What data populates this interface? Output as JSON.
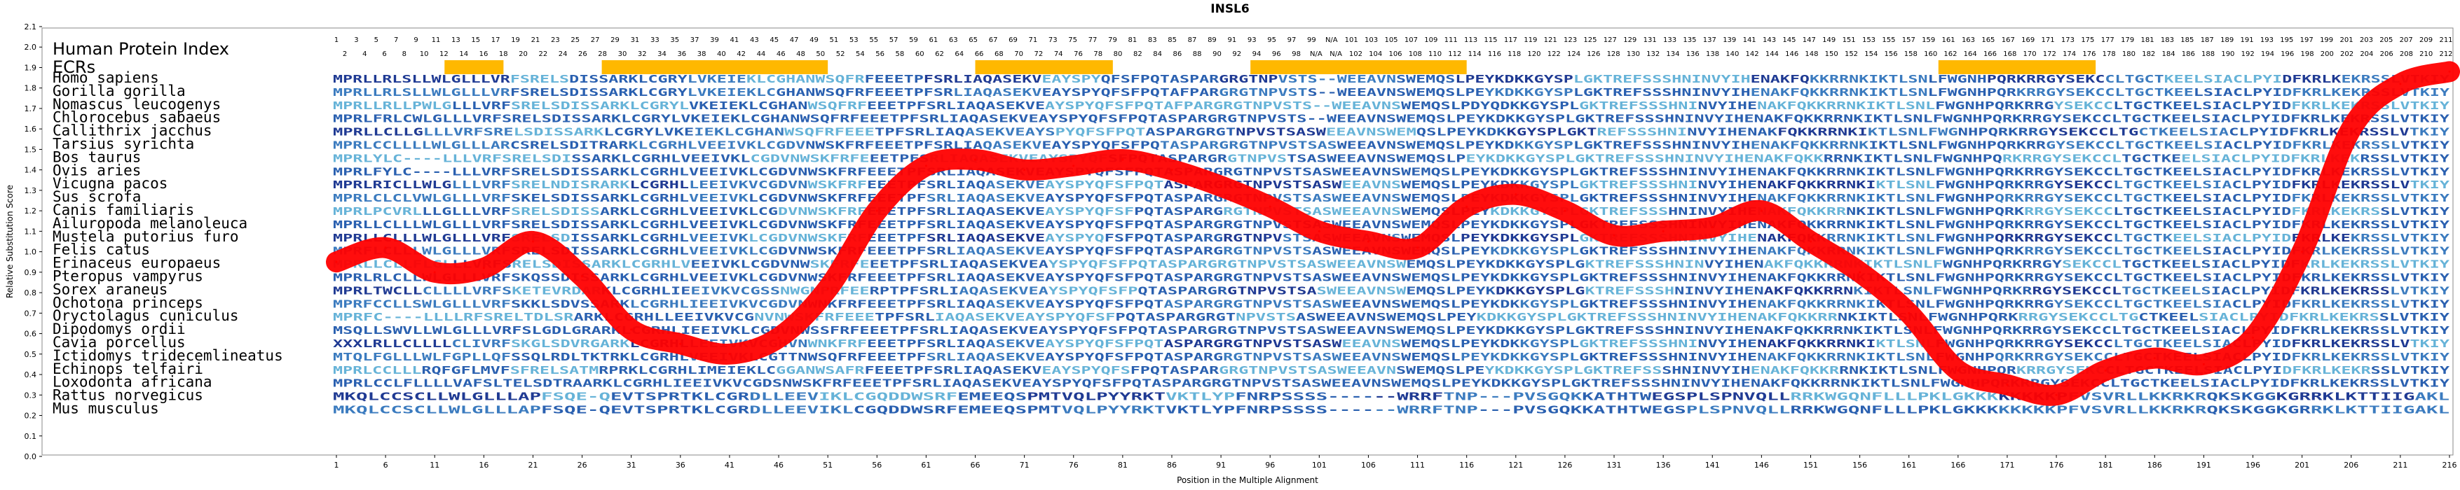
{
  "chart_data": {
    "type": "line",
    "title": "INSL6",
    "xlabel": "Position in the Multiple Alignment",
    "ylabel": "Relative Substitution Score",
    "xlim": [
      1,
      216
    ],
    "ylim": [
      0.0,
      2.1
    ],
    "yticks": [
      "0.0",
      "0.1",
      "0.2",
      "0.3",
      "0.4",
      "0.5",
      "0.6",
      "0.7",
      "0.8",
      "0.9",
      "1.0",
      "1.1",
      "1.2",
      "1.3",
      "1.4",
      "1.5",
      "1.6",
      "1.7",
      "1.8",
      "1.9",
      "2.0",
      "2.1"
    ],
    "xticks": [
      1,
      6,
      11,
      16,
      21,
      26,
      31,
      36,
      41,
      46,
      51,
      56,
      61,
      66,
      71,
      76,
      81,
      86,
      91,
      96,
      101,
      106,
      111,
      116,
      121,
      126,
      131,
      136,
      141,
      146,
      151,
      156,
      161,
      166,
      171,
      176,
      181,
      186,
      191,
      196,
      201,
      206,
      211,
      216
    ],
    "hpi_label": "Human Protein Index",
    "hpi_row1": [
      "1",
      "3",
      "5",
      "7",
      "9",
      "11",
      "13",
      "15",
      "17",
      "19",
      "21",
      "23",
      "25",
      "27",
      "29",
      "31",
      "33",
      "35",
      "37",
      "39",
      "41",
      "43",
      "45",
      "47",
      "49",
      "51",
      "53",
      "55",
      "57",
      "59",
      "61",
      "63",
      "65",
      "67",
      "69",
      "71",
      "73",
      "75",
      "77",
      "79",
      "81",
      "83",
      "85",
      "87",
      "89",
      "91",
      "93",
      "95",
      "97",
      "99",
      "N/A",
      "101",
      "103",
      "105",
      "107",
      "109",
      "111",
      "113",
      "115",
      "117",
      "119",
      "121",
      "123",
      "125",
      "127",
      "129",
      "131",
      "133",
      "135",
      "137",
      "139",
      "141",
      "143",
      "145",
      "147",
      "149",
      "151",
      "153",
      "155",
      "157",
      "159",
      "161",
      "163",
      "165",
      "167",
      "169",
      "171",
      "173",
      "175",
      "177",
      "179",
      "181",
      "183",
      "185",
      "187",
      "189",
      "191",
      "193",
      "195",
      "197",
      "199",
      "201",
      "203",
      "205",
      "207",
      "209",
      "211"
    ],
    "hpi_row2": [
      "2",
      "4",
      "6",
      "8",
      "10",
      "12",
      "14",
      "16",
      "18",
      "20",
      "22",
      "24",
      "26",
      "28",
      "30",
      "32",
      "34",
      "36",
      "38",
      "40",
      "42",
      "44",
      "46",
      "48",
      "50",
      "52",
      "54",
      "56",
      "58",
      "60",
      "62",
      "64",
      "66",
      "68",
      "70",
      "72",
      "74",
      "76",
      "78",
      "80",
      "82",
      "84",
      "86",
      "88",
      "90",
      "92",
      "94",
      "96",
      "98",
      "N/A",
      "N/A",
      "102",
      "104",
      "106",
      "108",
      "110",
      "112",
      "114",
      "116",
      "118",
      "120",
      "122",
      "124",
      "126",
      "128",
      "130",
      "132",
      "134",
      "136",
      "138",
      "140",
      "142",
      "144",
      "146",
      "148",
      "150",
      "152",
      "154",
      "156",
      "158",
      "160",
      "162",
      "164",
      "166",
      "168",
      "170",
      "172",
      "174",
      "176",
      "178",
      "180",
      "182",
      "184",
      "186",
      "188",
      "190",
      "192",
      "194",
      "196",
      "198",
      "200",
      "202",
      "204",
      "206",
      "208",
      "210",
      "212"
    ],
    "ecr_label": "ECRs",
    "ecrs": [
      [
        12,
        18
      ],
      [
        28,
        51
      ],
      [
        66,
        80
      ],
      [
        94,
        116
      ],
      [
        164,
        180
      ]
    ],
    "species": [
      {
        "name": "Homo sapiens",
        "seq": "MPRLLRLSLLWLGLLLVRFSRELSDISSARKLCGRYLVKEIEKLCGHANWSQFRFEEETPFSRLIAQASEKVEAYSPYQFSFPQTASPARGRGTNPVSTS--WEEAVNSWEMQSLPEYKDKKGYSPLGKTREFSSSHNINVYIHENAKFQKKRRNKIKTLSNLFWGNHPQRKRRGYSEKCCLTGCTKEELSIACLPYIDFKRLKEKRSSLVTKIY"
      },
      {
        "name": "Gorilla gorilla",
        "seq": "MPRLLRLSLLWLGLLLVRFSRELSDISSARKLCGRYLVKEIEKLCGHANWSQFRFEEETPFSRLIAQASEKVEAYSPYQFSFPQTAFPARGRGTNPVSTS--WEEAVNSWEMQSLPEYKDKKGYSPLGKTREFSSSHNINVYIHENAKFQKKRRNKIKTLSNLFWGNHPQRKRRGYSEKCCLTGCTKEELSIACLPYIDFKRLKEKRSSLVTKIY"
      },
      {
        "name": "Nomascus leucogenys",
        "seq": "MPRLLRLLPWLGLLLVRFSRELSDISSARKLCGRYLVKEIEKLCGHANWSQFRFEEETPFSRLIAQASEKVEAYSPYQFSFPQTAFPARGRGTNPVSTS--WEEAVNSWEMQSLPDYQDKKGYSPLGKTREFSSSHNINVYIHENAKFQKKRRNKIKTLSNLFWGNHPQRKRRGYSEKCCLTGCTKEELSIACLPYIDFKRLKEKRSSLVTKIY"
      },
      {
        "name": "Chlorocebus sabaeus",
        "seq": "MPRLFRLCWLGLLLVRFSRELSDISSARKLCGRYLVKEIEKLCGHANWSQFRFEEETPFSRLIAQASEKVEAYSPYQFSFPQTASPARGRGTNPVSTS--WEEAVNSWEMQSLPEYKDKKGYSPLGKTREFSSSHNINVYIHENAKFQKKRRNKIKTLSNLFWGNHPQRKRRGYSEKCCLTGCTKEELSIACLPYIDFKRLKEKRSSLVTKIY"
      },
      {
        "name": "Callithrix jacchus",
        "seq": "MPRLLCLLGLLLVRFSRELSDISSARKLCGRYLVKEIEKLCGHANWSQFRFEEETPFSRLIAQASEKVEAYSPYQFSFPQTASPARGRGTNPVSTSASWEEAVNSWEMQSLPEYKDKKGYSPLGKTREFSSSHNINVYIHENAKFQKKRRNKIKTLSNLFWGNHPQRKRRGYSEKCCLTGCTKEELSIACLPYIDFKRLKEKRSSLVTKIY"
      },
      {
        "name": "Tarsius syrichta",
        "seq": "MPRLCCLLLLWLGLLLARCSRELSDITRARKLCGRHLVEEIVKLCGDVNWSKFRFEEETPFSRLIAQASEKVEAYSPYQFSFPQTASPARGRGTNPVSTSASWEEAVNSWEMQSLPEYKDKKGYSPLGKTREFSSSHNINVYIHENAKFQKKRRNKIKTLSNLFWGNHPQRKRRGYSEKCCLTGCTKEELSIACLPYIDFKRLKEKRSSLVTKIY"
      },
      {
        "name": "Bos taurus",
        "seq": "MPRLYLC----LLLVRFSRELSDISSARKLCGRHLVEEIVKLCGDVNWSKFRFEEETPFSRLIAQASEKVEAYSPYQFSFPQTASPARGRGTNPVSTSASWEEAVNSWEMQSLPEYKDKKGYSPLGKTREFSSSHNINVYIHENAKFQKKRRNKIKTLSNLFWGNHPQRKRRGYSEKCCLTGCTKEELSIACLPYIDFKRLKEKRSSLVTKIY"
      },
      {
        "name": "Ovis aries",
        "seq": "MPRLFYLC----LLLVRFSRELSDISSARKLCGRHLVEEIVKLCGDVNWSKFRFEEETPFSRLIAQASEKVEAYSPYQFSFPQTASPARGRGTNPVSTSASWEEAVNSWEMQSLPEYKDKKGYSPLGKTREFSSSHNINVYIHENAKFQKKRRNKIKTLSNLFWGNHPQRKRRGYSEKCCLTGCTKEELSIACLPYIDFKRLKEKRSSLVTKIY"
      },
      {
        "name": "Vicugna pacos",
        "seq": "MPRLRICLLWLGLLLVRFSRELNDISRARKLCGRHLLEEIVKVCGDVNWSKFRFEEETPFSRLIAQASEKVEAYSPYQFSFPQTASPARGRGTNPVSTSASWEEAVNSWEMQSLPEYKDKKGYSPLGKTREFSSSHNINVYIHENAKFQKKRRNKIKTLSNLFWGNHPQRKRRGYSEKCCLTGCTKEELSIACLPYIDFKRLKEKRSSLVTKIY"
      },
      {
        "name": "Sus scrofa",
        "seq": "MPRLCLCLVWLGLLLVRFSKELSDISSARKLCGRHLVEEIVKLCGDVNWSKFRFEEETPFSRLIAQASEKVEAYSPYQFSFPQTASPARGRGTNPVSTSASWEEAVNSWEMQSLPEYKDKKGYSPLGKTREFSSSHNINVYIHENAKFQKKRRNKIKTLSNLFWGNHPQRKRRGYSEKCCLTGCTKEELSIACLPYIDFKRLKEKRSSLVTKIY"
      },
      {
        "name": "Canis familiaris",
        "seq": "MPRLPCVRLLLGLLLVRFSRELSDISSARKLCGRHLVEEIVKLCGDVNWSKFRFEEETPFSRLIAQASEKVEAYSPYQFSFPQTASPARGRGTNPVSTSASWEEAVNSWEMQSLPEYKDKKGYSPLGKTREFSSSHNINVYIHENAKFQKKRRNKIKTLSNLFWGNHPQRKRRGYSEKCCLTGCTKEELSIACLPYIDFKRLKEKRSSLVTKIY"
      },
      {
        "name": "Ailuropoda melanoleuca",
        "seq": "MPRLLCLLLWLGLLLVRFSRELSDISSARKLCGRHLVEEIVKLCGDVNWSKFRFEEETPFSRLIAQASEKVEAYSPYQFSFPQTASPARGRGTNPVSTSASWEEAVNSWEMQSLPEYKDKKGYSPLGKTREFSSSHNINVYIHENAKFQKKRRNKIKTLSNLFWGNHPQRKRRGYSEKCCLTGCTKEELSIACLPYIDFKRLKEKRSSLVTKIY"
      },
      {
        "name": "Mustela putorius furo",
        "seq": "MPRLLCLLLWLGLLLVRFSRELSDISSARKLCGRHLVEEIVKLCGDVNWSKFRFEEETPFSRLIAQASEKVEAYSPYQFSFPQTASPARGRGTNPVSTSASWEEAVNSWEMQSLPEYKDKKGYSPLGKTREFSSSHNINVYIHENAKFQKKRRNKIKTLSNLFWGNHPQRKRRGYSEKCCLTGCTKEELSIACLPYIDFKRLKEKRSSLVTKIY"
      },
      {
        "name": "Felis catus",
        "seq": "MPRFLCLLLWLGLLLVRFSRELSDISSARKLCGRHLVEEIVKLCGDVNWSKFRFEEETPFSRLIAQASEKVEAYSPYQFSFPQTASPARGRGTNPVSTSASWEEAVNSWEMQSLPEYKDKKGYSPLGKTREFSSSHNINVYIHENAKFQKKRRNKIKTLSNLFWGNHPQRKRRGYSEKCCLTGCTKEELSIACLPYIDFKRLKEKRSSLVTKIY"
      },
      {
        "name": "Erinaceus europaeus",
        "seq": "MPRLLCLLFLGLLLVRFSRELSDISSARKLCGRHLVEEIVKLCGDVNWSKFRFEEETPFSRLIAQASEKVEAYSPYQFSFPQTASPARGRGTNPVSTSASWEEAVNSWEMQSLPEYKDKKGYSPLGKTREFSSSHNINVYIHENAKFQKKRRNKIKTLSNLFWGNHPQRKRRGYSEKCCLTGCTKEELSIACLPYIDFKRLKEKRSSLVTKIY"
      },
      {
        "name": "Pteropus vampyrus",
        "seq": "MPRLRLCLLWLGLLLVRFSKQSSDISSARKLCGRHLVEEIVKLCGDVNWSKFRFEEETPFSRLIAQASEKVEAYSPYQFSFPQTASPARGRGTNPVSTSASWEEAVNSWEMQSLPEYKDKKGYSPLGKTREFSSSHNINVYIHENAKFQKKRRNKIKTLSNLFWGNHPQRKRRGYSEKCCLTGCTKEELSIACLPYIDFKRLKEKRSSLVTKIY"
      },
      {
        "name": "Sorex araneus",
        "seq": "MPRLTWCLLCLLLLVRFSKETEVRDARKLCGRHLIEEIVKVCGSSNWGNFRFEERPTPFSRLIAQASEKVEAYSPYQFSFPQTASPARGRGTNPVSTSASWEEAVNSWEMQSLPEYKDKKGYSPLGKTREFSSSHNINVYIHENAKFQKKRRNKIKTLSNLFWGNHPQRKRRGYSEKCCLTGCTKEELSIACLPYIDFKRLKEKRSSLVTKIY"
      },
      {
        "name": "Ochotona princeps",
        "seq": "MPRFCCLLSWLGLLLVRFSKKLSDVSSARKLCGRHLIEEIVKVCGDVNWNKFRFEEETPFSRLIAQASEKVEAYSPYQFSFPQTASPARGRGTNPVSTSASWEEAVNSWEMQSLPEYKDKKGYSPLGKTREFSSSHNINVYIHENAKFQKKRRNKIKTLSNLFWGNHPQRKRRGYSEKCCLTGCTKEELSIACLPYIDFKRLKEKRSSLVTKIY"
      },
      {
        "name": "Oryctolagus cuniculus",
        "seq": "MPRFC----LLLLRFSRELTDLSRARKLCGRHLLEEIVKVCGNVNWSKFRFEEETPFSRLIAQASEKVEAYSPYQFSFPQTASPARGRGTNPVSTSASWEEAVNSWEMQSLPEYKDKKGYSPLGKTREFSSSHNINVYIHENAKFQKKRRNKIKTLSNLFWGNHPQRKRRGYSEKCCLTGCTKEELSIACLPYIDFKRLKEKRSSLVTKIY"
      },
      {
        "name": "Dipodomys ordii",
        "seq": "MSQLLSWVLLWLGLLLVRFSLGDLGRARKLCGRHLIEEIVKLCGDVNWSSFRFEEETPFSRLIAQASEKVEAYSPYQFSFPQTASPARGRGTNPVSTSASWEEAVNSWEMQSLPEYKDKKGYSPLGKTREFSSSHNINVYIHENAKFQKKRRNKIKTLSNLFWGNHPQRKRRGYSEKCCLTGCTKEELSIACLPYIDFKRLKEKRSSLVTKIY"
      },
      {
        "name": "Cavia porcellus",
        "seq": "XXXLRLLCLLLLCLIVRFSKGLSDVRGARKLCGRHLLEEIVKVCGHVNWNKFRFEEETPFSRLIAQASEKVEAYSPYQFSFPQTASPARGRGTNPVSTSASWEEAVNSWEMQSLPEYKDKKGYSPLGKTREFSSSHNINVYIHENAKFQKKRRNKIKTLSNLFWGNHPQRKRRGYSEKCCLTGCTKEELSIACLPYIDFKRLKEKRSSLVTKIY"
      },
      {
        "name": "Ictidomys tridecemlineatus",
        "seq": "MTQLFGLLLWLFGPLLQFSSQLRDLTKTRKLCGRHLVEEIVKLCGTTNWSQFRFEEETPFSRLIAQASEKVEAYSPYQFSFPQTASPARGRGTNPVSTSASWEEAVNSWEMQSLPEYKDKKGYSPLGKTREFSSSHNINVYIHENAKFQKKRRNKIKTLSNLFWGNHPQRKRRGYSEKCCLTGCTKEELSIACLPYIDFKRLKEKRSSLVTKIY"
      },
      {
        "name": "Echinops telfairi",
        "seq": "MPRLCCLLLRQFGFLMVFSFRELSATMRPRKLCGRHLIMEIEKLCGGANWSAFRFEEETPFSRLIAQASEKVEAYSPYQFSFPQTASPARGRGTNPVSTSASWEEAVNSWEMQSLPEYKDKKGYSPLGKTREFSSSHNINVYIHENAKFQKKRRNKIKTLSNLFWGNHPQRKRRGYSEKCCLTGCTKEELSIACLPYIDFKRLKEKRSSLVTKIY"
      },
      {
        "name": "Loxodonta africana",
        "seq": "MPRLCCLFLLLLVAFSLTELSDTRAARKLCGRHLIEEIVKVCGDSNWSKFRFEEETPFSRLIAQASEKVEAYSPYQFSFPQTASPARGRGTNPVSTSASWEEAVNSWEMQSLPEYKDKKGYSPLGKTREFSSSHNINVYIHENAKFQKKRRNKIKTLSNLFWGNHPQRKRRGYSEKCCLTGCTKEELSIACLPYIDFKRLKEKRSSLVTKIY"
      },
      {
        "name": "Rattus norvegicus",
        "seq": "MKQLCCSCLLWLGLLLAPFSQE-QEVTSPRTKLCGRDLLEEVIKLCGQDDWSRFEMEEQSPMTVQLPYYRKTVKTLYPFNRPSSSS------WRRFTNP---PVSGQKKATHTWEGSPLSPNVQLLRRKWGQNFLLLPKLGKKKKKKKKPFVSVRLLKKRKRQKSKGGKGRRKLKTTIIGAKL"
      },
      {
        "name": "Mus musculus",
        "seq": "MKQLCCSCLLWLGLLLAPFSQE-QEVTSPRTKLCGRDLLEEVIKLCGQDDWSRFEMEEQSPMTVQLPYYRKTVKTLYPFNRPSSSS------WRRFTNP---PVSGQKKATHTWEGSPLSPNVQLLRRKWGQNFLLLPKLGKKKKKKKKPFVSVRLLKKRKRQKSKGGKGRRKLKTTIIGAKL"
      }
    ],
    "series": [
      {
        "x": [
          1,
          6,
          11,
          16,
          21,
          26,
          31,
          36,
          41,
          46,
          51,
          56,
          61,
          66,
          71,
          76,
          81,
          86,
          91,
          96,
          101,
          106,
          111,
          116,
          121,
          126,
          131,
          136,
          141,
          146,
          151,
          156,
          161,
          166,
          171,
          176,
          181,
          186,
          191,
          196,
          201,
          206,
          211,
          216
        ],
        "values": [
          0.95,
          1.02,
          0.9,
          0.92,
          1.05,
          0.88,
          0.62,
          0.55,
          0.5,
          0.58,
          0.82,
          1.2,
          1.42,
          1.45,
          1.4,
          1.42,
          1.45,
          1.4,
          1.32,
          1.22,
          1.1,
          1.05,
          1.02,
          1.22,
          1.28,
          1.2,
          1.08,
          1.1,
          1.12,
          1.2,
          1.05,
          0.9,
          0.7,
          0.42,
          0.35,
          0.3,
          0.42,
          0.48,
          0.45,
          0.58,
          1.0,
          1.6,
          1.82,
          1.88
        ]
      }
    ],
    "colors": {
      "curve": "#ff0000",
      "ecr": "#ffb800",
      "seq_dark": "#1f3a93",
      "seq_mid": "#3b7bbf",
      "seq_light": "#66b3d8"
    }
  }
}
